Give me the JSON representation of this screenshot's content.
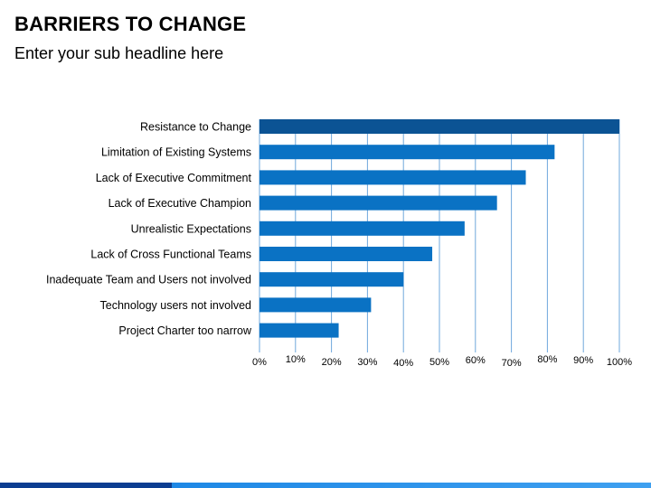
{
  "page": {
    "title": "BARRIERS TO CHANGE",
    "subtitle": "Enter your sub headline here"
  },
  "colors": {
    "bar": "#0A72C4",
    "bar_highlight": "#0B5394",
    "gridline": "#6FA8DC",
    "footer_dark": "#0B3D91",
    "footer_light": "#1E88E5"
  },
  "chart_data": {
    "type": "bar",
    "orientation": "horizontal",
    "categories": [
      "Resistance to Change",
      "Limitation of Existing Systems",
      "Lack of Executive Commitment",
      "Lack of Executive Champion",
      "Unrealistic Expectations",
      "Lack of Cross Functional Teams",
      "Inadequate Team and Users not involved",
      "Technology users not involved",
      "Project Charter too narrow"
    ],
    "values": [
      100,
      82,
      74,
      66,
      57,
      48,
      40,
      31,
      22
    ],
    "xlim": [
      0,
      100
    ],
    "x_ticks": [
      0,
      10,
      20,
      30,
      40,
      50,
      60,
      70,
      80,
      90,
      100
    ],
    "x_tick_labels": [
      "0%",
      "10%",
      "20%",
      "30%",
      "40%",
      "50%",
      "60%",
      "70%",
      "80%",
      "90%",
      "100%"
    ],
    "highlighted_category": "Resistance to Change",
    "grid": "vertical"
  }
}
